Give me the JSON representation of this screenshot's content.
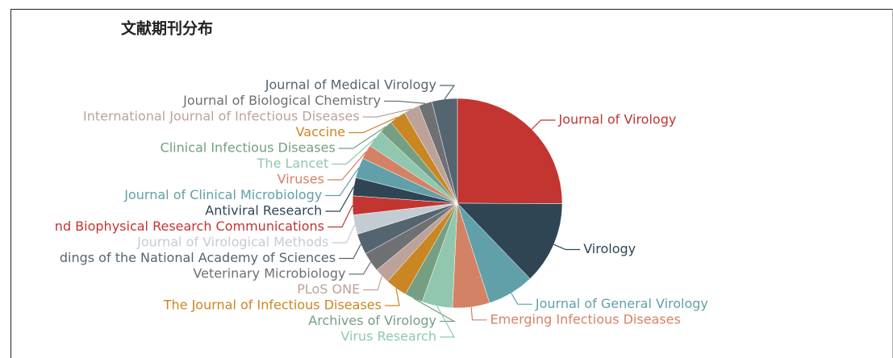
{
  "chart_data": {
    "type": "pie",
    "title": "文献期刊分布",
    "categories": [
      "Journal of Virology",
      "Virology",
      "Journal of General Virology",
      "Emerging Infectious Diseases",
      "Virus Research",
      "Archives of Virology",
      "The Journal of Infectious Diseases",
      "PLoS ONE",
      "Veterinary Microbiology",
      "dings of the National Academy of Sciences",
      "Journal of Virological Methods",
      "nd Biophysical Research Communications",
      "Antiviral Research",
      "Journal of Clinical Microbiology",
      "Viruses",
      "The Lancet",
      "Clinical Infectious Diseases",
      "Vaccine",
      "International Journal of Infectious Diseases",
      "Journal of Biological Chemistry",
      "Journal of Medical Virology"
    ],
    "values": [
      25,
      12.7,
      7.2,
      5.7,
      4.7,
      2.8,
      3.3,
      2.4,
      3.0,
      3.2,
      3.0,
      2.9,
      2.8,
      3.1,
      2.2,
      2.7,
      2.1,
      2.5,
      2.4,
      2.1,
      3.9
    ],
    "colors": [
      "#c23531",
      "#2f4554",
      "#61a0a8",
      "#d48265",
      "#91c7ae",
      "#749f83",
      "#ca8622",
      "#bda29a",
      "#6e7074",
      "#546570",
      "#c4ccd3",
      "#c23531",
      "#2f4554",
      "#61a0a8",
      "#d48265",
      "#91c7ae",
      "#749f83",
      "#ca8622",
      "#bda29a",
      "#6e7074",
      "#546570"
    ]
  }
}
